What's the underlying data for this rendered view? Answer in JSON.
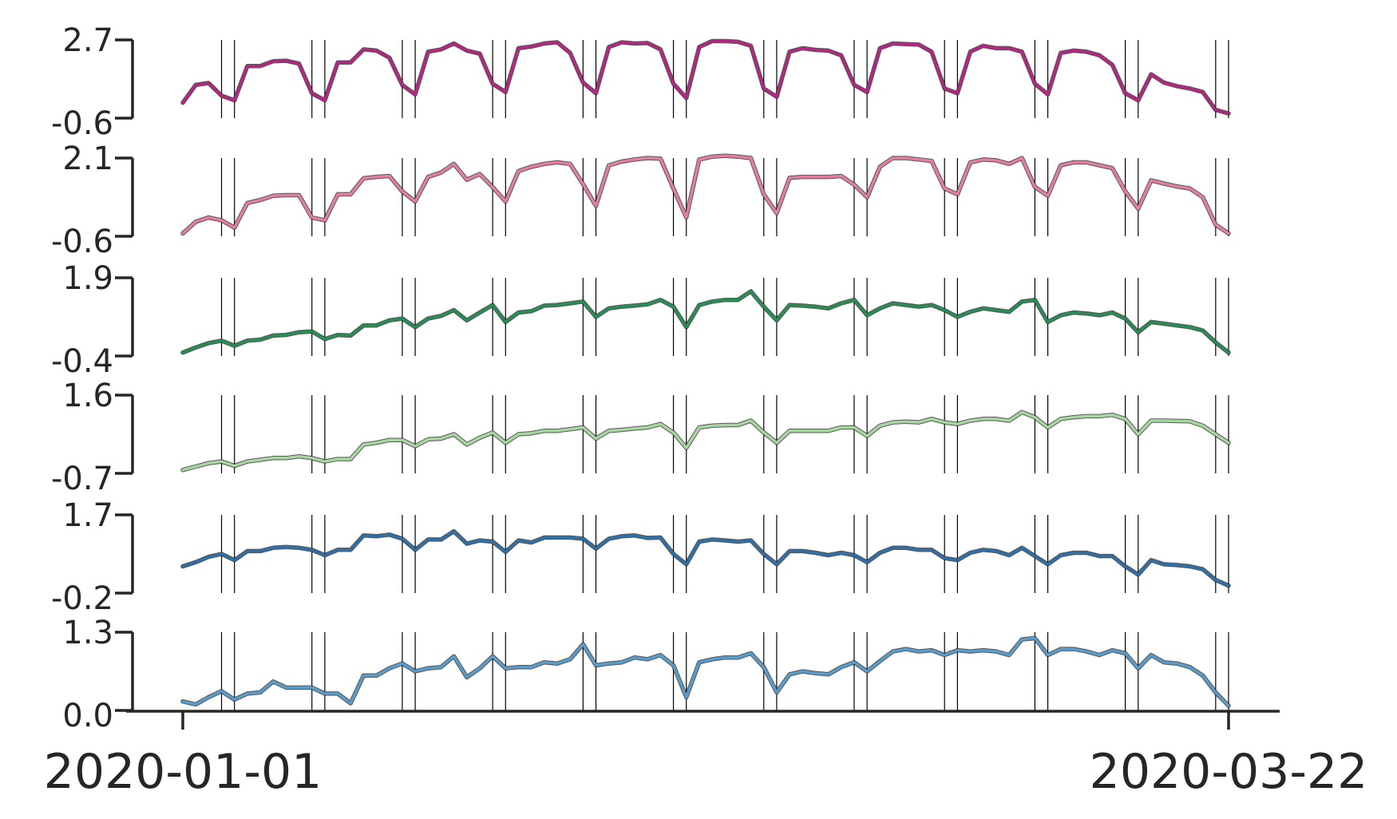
{
  "chart_data": {
    "type": "line",
    "title": "",
    "x_tick_labels": [
      "2020-01-01",
      "2020-03-22"
    ],
    "x_range": [
      "2020-01-01",
      "2020-03-22"
    ],
    "grid": false,
    "event_lines_day_index": [
      3,
      4,
      10,
      11,
      17,
      18,
      24,
      25,
      31,
      32,
      38,
      39,
      45,
      46,
      52,
      53,
      59,
      60,
      66,
      67,
      73,
      74,
      80,
      81
    ],
    "series": [
      {
        "color": "#b0287f",
        "ylim": [
          -0.6,
          2.7
        ],
        "yticks": [
          "-0.6",
          "2.7"
        ],
        "values": [
          0.05,
          0.8,
          0.88,
          0.35,
          0.15,
          1.6,
          1.6,
          1.8,
          1.82,
          1.7,
          0.45,
          0.15,
          1.75,
          1.75,
          2.3,
          2.25,
          1.95,
          0.8,
          0.4,
          2.2,
          2.3,
          2.55,
          2.25,
          2.12,
          0.85,
          0.5,
          2.35,
          2.42,
          2.55,
          2.6,
          2.15,
          0.9,
          0.45,
          2.4,
          2.6,
          2.55,
          2.57,
          2.3,
          0.85,
          0.25,
          2.4,
          2.65,
          2.65,
          2.62,
          2.45,
          0.65,
          0.3,
          2.2,
          2.35,
          2.28,
          2.25,
          2.05,
          0.8,
          0.5,
          2.35,
          2.55,
          2.52,
          2.5,
          2.2,
          0.65,
          0.45,
          2.2,
          2.45,
          2.35,
          2.35,
          2.2,
          0.85,
          0.4,
          2.15,
          2.25,
          2.2,
          2.05,
          1.65,
          0.45,
          0.15,
          1.25,
          0.9,
          0.75,
          0.65,
          0.5,
          -0.25,
          -0.4
        ]
      },
      {
        "color": "#e07fa3",
        "ylim": [
          -0.6,
          2.1
        ],
        "yticks": [
          "-0.6",
          "2.1"
        ],
        "values": [
          -0.5,
          -0.1,
          0.05,
          -0.05,
          -0.3,
          0.55,
          0.65,
          0.8,
          0.82,
          0.82,
          0.05,
          -0.05,
          0.85,
          0.85,
          1.4,
          1.45,
          1.48,
          0.95,
          0.6,
          1.45,
          1.6,
          1.9,
          1.35,
          1.55,
          1.1,
          0.6,
          1.65,
          1.8,
          1.9,
          1.95,
          1.9,
          1.2,
          0.45,
          1.85,
          1.98,
          2.05,
          2.1,
          2.08,
          1.05,
          0.05,
          2.05,
          2.15,
          2.18,
          2.15,
          2.1,
          0.85,
          0.2,
          1.42,
          1.45,
          1.45,
          1.45,
          1.48,
          1.18,
          0.75,
          1.8,
          2.1,
          2.1,
          2.05,
          2.0,
          1.05,
          0.85,
          1.95,
          2.05,
          2.02,
          1.9,
          2.1,
          1.1,
          0.8,
          1.85,
          1.95,
          1.95,
          1.85,
          1.75,
          0.95,
          0.35,
          1.33,
          1.22,
          1.12,
          1.05,
          0.75,
          -0.2,
          -0.5
        ]
      },
      {
        "color": "#2a8c55",
        "ylim": [
          -0.4,
          1.9
        ],
        "yticks": [
          "-0.4",
          "1.9"
        ],
        "values": [
          -0.3,
          -0.15,
          -0.02,
          0.05,
          -0.1,
          0.05,
          0.08,
          0.2,
          0.22,
          0.3,
          0.32,
          0.1,
          0.22,
          0.2,
          0.5,
          0.5,
          0.65,
          0.7,
          0.45,
          0.7,
          0.78,
          0.95,
          0.65,
          0.88,
          1.1,
          0.6,
          0.88,
          0.92,
          1.08,
          1.1,
          1.15,
          1.2,
          0.75,
          1.0,
          1.05,
          1.08,
          1.12,
          1.25,
          1.05,
          0.45,
          1.1,
          1.2,
          1.25,
          1.25,
          1.5,
          1.05,
          0.65,
          1.1,
          1.08,
          1.05,
          1.0,
          1.15,
          1.25,
          0.8,
          1.0,
          1.15,
          1.1,
          1.05,
          1.1,
          0.95,
          0.75,
          0.9,
          1.0,
          0.95,
          0.9,
          1.2,
          1.25,
          0.6,
          0.8,
          0.88,
          0.85,
          0.8,
          0.88,
          0.7,
          0.3,
          0.6,
          0.55,
          0.5,
          0.45,
          0.35,
          0.0,
          -0.3
        ]
      },
      {
        "color": "#a8d5a2",
        "ylim": [
          -0.7,
          1.6
        ],
        "yticks": [
          "-0.7",
          "1.6"
        ],
        "values": [
          -0.6,
          -0.5,
          -0.4,
          -0.35,
          -0.48,
          -0.35,
          -0.3,
          -0.25,
          -0.25,
          -0.2,
          -0.25,
          -0.35,
          -0.28,
          -0.28,
          0.15,
          0.2,
          0.28,
          0.28,
          0.1,
          0.3,
          0.32,
          0.45,
          0.15,
          0.35,
          0.5,
          0.2,
          0.45,
          0.48,
          0.55,
          0.55,
          0.6,
          0.65,
          0.32,
          0.55,
          0.58,
          0.62,
          0.65,
          0.75,
          0.5,
          0.05,
          0.65,
          0.7,
          0.72,
          0.72,
          0.85,
          0.5,
          0.2,
          0.55,
          0.55,
          0.55,
          0.55,
          0.65,
          0.65,
          0.4,
          0.7,
          0.8,
          0.82,
          0.8,
          0.9,
          0.8,
          0.75,
          0.85,
          0.9,
          0.9,
          0.85,
          1.1,
          0.95,
          0.65,
          0.9,
          0.95,
          0.98,
          0.98,
          1.02,
          0.9,
          0.45,
          0.85,
          0.85,
          0.84,
          0.83,
          0.7,
          0.45,
          0.2
        ]
      },
      {
        "color": "#2f6fa5",
        "ylim": [
          -0.2,
          1.7
        ],
        "yticks": [
          "-0.2",
          "1.7"
        ],
        "values": [
          0.45,
          0.55,
          0.68,
          0.75,
          0.6,
          0.82,
          0.82,
          0.9,
          0.92,
          0.9,
          0.85,
          0.72,
          0.85,
          0.85,
          1.2,
          1.18,
          1.22,
          1.12,
          0.85,
          1.1,
          1.1,
          1.3,
          1.0,
          1.08,
          1.05,
          0.8,
          1.08,
          1.03,
          1.15,
          1.15,
          1.15,
          1.12,
          0.88,
          1.12,
          1.18,
          1.2,
          1.14,
          1.15,
          0.75,
          0.5,
          1.05,
          1.1,
          1.08,
          1.05,
          1.08,
          0.75,
          0.5,
          0.82,
          0.82,
          0.78,
          0.72,
          0.78,
          0.72,
          0.55,
          0.78,
          0.9,
          0.9,
          0.85,
          0.85,
          0.65,
          0.6,
          0.78,
          0.85,
          0.82,
          0.72,
          0.9,
          0.7,
          0.5,
          0.72,
          0.78,
          0.78,
          0.7,
          0.7,
          0.45,
          0.25,
          0.6,
          0.5,
          0.48,
          0.45,
          0.38,
          0.12,
          -0.02
        ]
      },
      {
        "color": "#5b9bc8",
        "ylim": [
          0.0,
          1.3
        ],
        "yticks": [
          "0.0",
          "1.3"
        ],
        "values": [
          0.15,
          0.1,
          0.22,
          0.32,
          0.18,
          0.28,
          0.3,
          0.48,
          0.38,
          0.38,
          0.38,
          0.28,
          0.28,
          0.12,
          0.58,
          0.58,
          0.7,
          0.78,
          0.65,
          0.7,
          0.72,
          0.9,
          0.55,
          0.7,
          0.9,
          0.7,
          0.72,
          0.72,
          0.8,
          0.78,
          0.85,
          1.1,
          0.75,
          0.78,
          0.8,
          0.88,
          0.85,
          0.92,
          0.75,
          0.22,
          0.8,
          0.85,
          0.88,
          0.88,
          0.95,
          0.72,
          0.3,
          0.6,
          0.65,
          0.62,
          0.6,
          0.72,
          0.8,
          0.65,
          0.82,
          0.98,
          1.02,
          0.98,
          1.0,
          0.92,
          1.0,
          0.98,
          1.0,
          0.98,
          0.92,
          1.18,
          1.2,
          0.92,
          1.02,
          1.02,
          0.98,
          0.92,
          1.0,
          0.95,
          0.7,
          0.92,
          0.8,
          0.78,
          0.72,
          0.58,
          0.3,
          0.08
        ]
      }
    ]
  }
}
